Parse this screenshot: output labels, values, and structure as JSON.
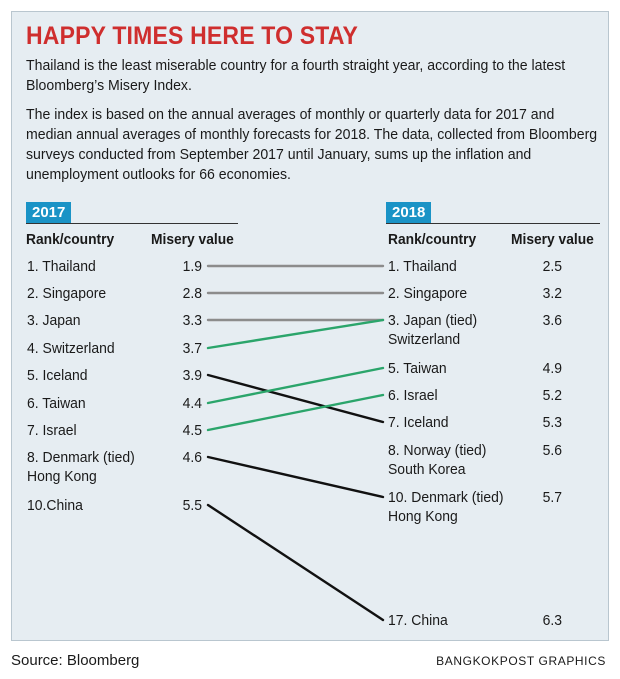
{
  "title": "HAPPY TIMES HERE TO STAY",
  "intro": "Thailand is the least miserable country for a fourth straight year, according to the latest Bloomberg’s Misery Index.",
  "method": "The index is based on the annual averages of monthly or quarterly data for 2017 and median annual averages of monthly forecasts for 2018. The data, collected from Bloomberg surveys conducted from September 2017 until January, sums up the inflation and unemployment outlooks for 66 economies.",
  "source": "Source: Bloomberg",
  "credit": "BANGKOKPOST GRAPHICS",
  "chart_data": {
    "type": "table",
    "columns": [
      "Rank/country",
      "Misery value"
    ],
    "colors": {
      "gray": "#8c8c8c",
      "green": "#2ba56b",
      "black": "#111111",
      "badge": "#1a93c6",
      "title": "#cf2e2e"
    },
    "y2017": {
      "label": "2017",
      "rows": [
        {
          "rank": "1. Thailand",
          "value": "1.9"
        },
        {
          "rank": "2. Singapore",
          "value": "2.8"
        },
        {
          "rank": "3. Japan",
          "value": "3.3"
        },
        {
          "rank": "4. Switzerland",
          "value": "3.7"
        },
        {
          "rank": "5. Iceland",
          "value": "3.9"
        },
        {
          "rank": "6. Taiwan",
          "value": "4.4"
        },
        {
          "rank": "7. Israel",
          "value": "4.5"
        },
        {
          "rank": "8. Denmark (tied)\nHong Kong",
          "value": "4.6"
        },
        {
          "rank": "10.China",
          "value": "5.5"
        }
      ]
    },
    "y2018": {
      "label": "2018",
      "rows": [
        {
          "rank": "1. Thailand",
          "value": "2.5"
        },
        {
          "rank": "2. Singapore",
          "value": "3.2"
        },
        {
          "rank": "3. Japan (tied)\nSwitzerland",
          "value": "3.6"
        },
        {
          "rank": "5. Taiwan",
          "value": "4.9"
        },
        {
          "rank": "6. Israel",
          "value": "5.2"
        },
        {
          "rank": "7. Iceland",
          "value": "5.3"
        },
        {
          "rank": "8. Norway (tied)\nSouth Korea",
          "value": "5.6"
        },
        {
          "rank": "10. Denmark (tied)\nHong Kong",
          "value": "5.7"
        },
        {
          "rank": "17. China",
          "value": "6.3"
        }
      ]
    },
    "links": [
      {
        "from": 0,
        "to": 0,
        "color": "gray"
      },
      {
        "from": 1,
        "to": 1,
        "color": "gray"
      },
      {
        "from": 2,
        "to": 2,
        "color": "gray"
      },
      {
        "from": 3,
        "to": 2,
        "color": "green"
      },
      {
        "from": 4,
        "to": 5,
        "color": "black"
      },
      {
        "from": 5,
        "to": 3,
        "color": "green"
      },
      {
        "from": 6,
        "to": 4,
        "color": "green"
      },
      {
        "from": 7,
        "to": 7,
        "color": "black"
      },
      {
        "from": 8,
        "to": 8,
        "color": "black"
      }
    ]
  }
}
